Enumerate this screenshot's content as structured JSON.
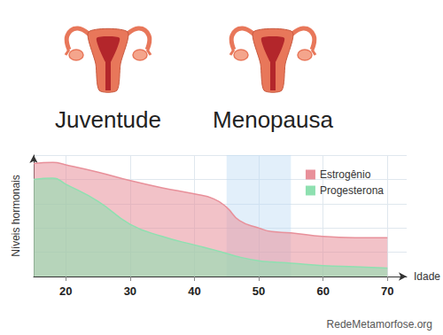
{
  "chart_data": {
    "type": "area",
    "annotations": [
      "Juventude",
      "Menopausa"
    ],
    "source": "RedeMetamorfose.org",
    "x_label": "Idade",
    "y_label": "Níveis hormonais",
    "x": [
      15,
      18,
      20,
      25,
      30,
      35,
      40,
      43,
      45,
      47,
      50,
      52,
      55,
      60,
      65,
      70
    ],
    "series": [
      {
        "name": "Estrogênio",
        "color": "#e8909a",
        "values": [
          93,
          94,
          92,
          86,
          79,
          73,
          68,
          64,
          57,
          46,
          40,
          37,
          36,
          33,
          32,
          32
        ]
      },
      {
        "name": "Progesterona",
        "color": "#8ee0b0",
        "values": [
          80,
          81,
          76,
          62,
          43,
          33,
          26,
          22,
          19,
          16,
          13,
          12,
          11,
          9,
          8,
          7
        ]
      }
    ],
    "xlim": [
      15,
      73
    ],
    "xticks": [
      20,
      30,
      40,
      50,
      60,
      70
    ],
    "ylim": [
      0,
      100
    ],
    "yticks": [
      0,
      20,
      40,
      60,
      80,
      100
    ],
    "highlight_range": [
      45,
      55
    ],
    "grid": true,
    "legend": "upper right",
    "tick_labels": "x",
    "stacked": false
  }
}
